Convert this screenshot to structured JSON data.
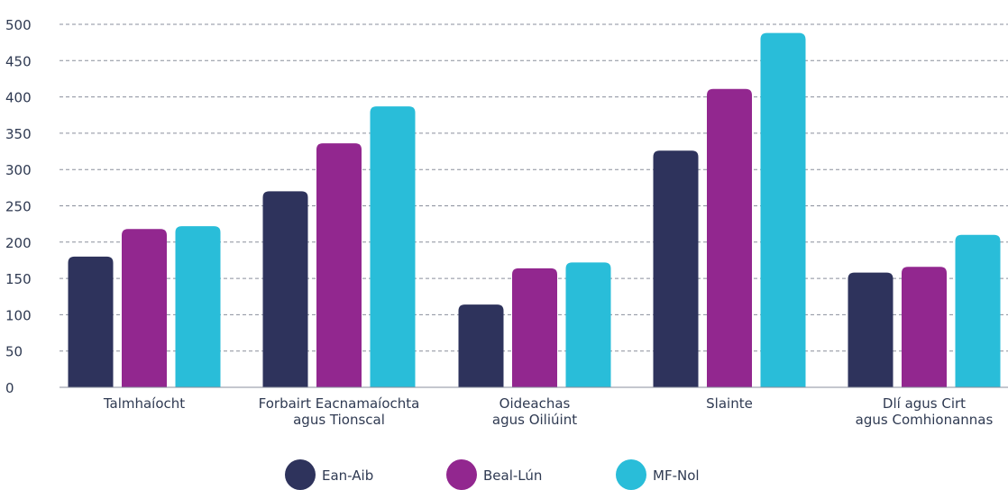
{
  "chart_data": {
    "type": "bar",
    "categories": [
      [
        "Talmhaíocht"
      ],
      [
        "Forbairt Eacnamaíochta",
        "agus Tionscal"
      ],
      [
        "Oideachas",
        "agus Oiliúint"
      ],
      [
        "Slainte"
      ],
      [
        "Dlí agus Cirt",
        "agus Comhionannas"
      ]
    ],
    "series": [
      {
        "name": "Ean-Aib",
        "color": "#2e335c",
        "values": [
          180,
          270,
          114,
          326,
          158
        ]
      },
      {
        "name": "Beal-Lún",
        "color": "#92278f",
        "values": [
          218,
          336,
          164,
          411,
          166
        ]
      },
      {
        "name": "MF-Nol",
        "color": "#29bdd9",
        "values": [
          222,
          387,
          172,
          488,
          210
        ]
      }
    ],
    "yticks": [
      "0",
      "50",
      "100",
      "150",
      "200",
      "250",
      "300",
      "350",
      "400",
      "450",
      "500"
    ],
    "ylim": [
      0,
      500
    ],
    "grid": true,
    "legend": "bottom-center"
  }
}
